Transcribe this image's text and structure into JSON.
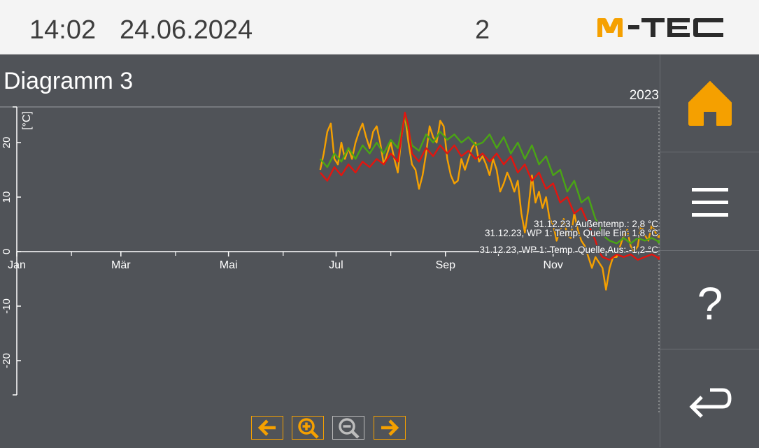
{
  "header": {
    "time": "14:02",
    "date": "24.06.2024",
    "page_number": "2",
    "logo_text": "M-TEC",
    "logo_colors": {
      "m": "#f5a000",
      "tec": "#2b2b2b"
    }
  },
  "page_title": "Diagramm 3",
  "sidebar": {
    "items": [
      {
        "name": "home",
        "icon": "home-icon",
        "color": "#f5a000"
      },
      {
        "name": "menu",
        "icon": "hamburger-menu-icon",
        "color": "#ffffff"
      },
      {
        "name": "help",
        "icon": "question-mark-icon",
        "color": "#ffffff",
        "label": "?"
      },
      {
        "name": "back",
        "icon": "return-arrow-icon",
        "color": "#ffffff"
      }
    ]
  },
  "bottom_nav": [
    {
      "name": "prev",
      "icon": "arrow-left-icon"
    },
    {
      "name": "zoom-in",
      "icon": "zoom-in-icon"
    },
    {
      "name": "zoom-out",
      "icon": "zoom-out-icon",
      "disabled": true
    },
    {
      "name": "next",
      "icon": "arrow-right-icon"
    }
  ],
  "chart_data": {
    "type": "line",
    "year_label": "2023",
    "ylabel": "[°C]",
    "ylim": [
      -26,
      26
    ],
    "xlim": [
      0,
      364
    ],
    "grid": false,
    "x_ticks": [
      {
        "day": 0,
        "label": "Jan"
      },
      {
        "day": 59,
        "label": "Mär"
      },
      {
        "day": 120,
        "label": "Mai"
      },
      {
        "day": 181,
        "label": "Jul"
      },
      {
        "day": 243,
        "label": "Sep"
      },
      {
        "day": 304,
        "label": "Nov"
      }
    ],
    "x_minor_ticks": [
      31,
      90,
      151,
      212,
      273,
      334
    ],
    "y_ticks": [
      20,
      10,
      0,
      -10,
      -20
    ],
    "series": [
      {
        "name": "Außentemp.",
        "color": "#f5a000",
        "tooltip": "31.12.23, Außentemp.: 2,8 °C",
        "points": [
          [
            172,
            15
          ],
          [
            174,
            18
          ],
          [
            176,
            22
          ],
          [
            178,
            23.5
          ],
          [
            180,
            17
          ],
          [
            182,
            16
          ],
          [
            184,
            20
          ],
          [
            186,
            17
          ],
          [
            188,
            19
          ],
          [
            190,
            17
          ],
          [
            192,
            20
          ],
          [
            194,
            22
          ],
          [
            196,
            23.5
          ],
          [
            198,
            21
          ],
          [
            200,
            19
          ],
          [
            202,
            22
          ],
          [
            204,
            23
          ],
          [
            206,
            20
          ],
          [
            208,
            16
          ],
          [
            210,
            18
          ],
          [
            212,
            20
          ],
          [
            214,
            17
          ],
          [
            216,
            14.5
          ],
          [
            218,
            21
          ],
          [
            220,
            25
          ],
          [
            222,
            20
          ],
          [
            224,
            16
          ],
          [
            226,
            15
          ],
          [
            228,
            11.5
          ],
          [
            230,
            14
          ],
          [
            232,
            18
          ],
          [
            234,
            23
          ],
          [
            236,
            21
          ],
          [
            238,
            20
          ],
          [
            240,
            24
          ],
          [
            242,
            23
          ],
          [
            244,
            17
          ],
          [
            246,
            14
          ],
          [
            248,
            12.5
          ],
          [
            250,
            13
          ],
          [
            252,
            17
          ],
          [
            254,
            15
          ],
          [
            256,
            17
          ],
          [
            258,
            19
          ],
          [
            260,
            20
          ],
          [
            262,
            16.5
          ],
          [
            264,
            17.5
          ],
          [
            266,
            16
          ],
          [
            268,
            14
          ],
          [
            270,
            17
          ],
          [
            272,
            15
          ],
          [
            274,
            11
          ],
          [
            276,
            12.5
          ],
          [
            278,
            14.5
          ],
          [
            280,
            13
          ],
          [
            282,
            11
          ],
          [
            284,
            13
          ],
          [
            286,
            7
          ],
          [
            288,
            3.5
          ],
          [
            290,
            8
          ],
          [
            292,
            14
          ],
          [
            294,
            9
          ],
          [
            296,
            11
          ],
          [
            298,
            8
          ],
          [
            300,
            10
          ],
          [
            302,
            6
          ],
          [
            304,
            5
          ],
          [
            306,
            2
          ],
          [
            308,
            4
          ],
          [
            310,
            6
          ],
          [
            312,
            3
          ],
          [
            314,
            2.5
          ],
          [
            316,
            7
          ],
          [
            318,
            4
          ],
          [
            320,
            2
          ],
          [
            322,
            1
          ],
          [
            324,
            -1
          ],
          [
            326,
            -3
          ],
          [
            328,
            -1
          ],
          [
            330,
            -2
          ],
          [
            332,
            -3
          ],
          [
            334,
            -7
          ],
          [
            336,
            -3
          ],
          [
            338,
            -1
          ],
          [
            340,
            -1
          ],
          [
            342,
            1
          ],
          [
            344,
            3
          ],
          [
            346,
            4
          ],
          [
            348,
            1
          ],
          [
            350,
            0
          ],
          [
            352,
            1
          ],
          [
            354,
            5
          ],
          [
            356,
            3
          ],
          [
            358,
            2
          ],
          [
            360,
            5
          ],
          [
            362,
            3.5
          ],
          [
            364,
            2.8
          ]
        ]
      },
      {
        "name": "WP 1: Temp. Quelle Ein",
        "color": "#4aa515",
        "tooltip": "31.12.23, WP 1: Temp. Quelle Ein: 1,8 °C",
        "points": [
          [
            172,
            17
          ],
          [
            176,
            15.5
          ],
          [
            180,
            18
          ],
          [
            184,
            16.5
          ],
          [
            188,
            19
          ],
          [
            192,
            17
          ],
          [
            196,
            19.5
          ],
          [
            200,
            18
          ],
          [
            204,
            20
          ],
          [
            208,
            18
          ],
          [
            212,
            20.5
          ],
          [
            216,
            19
          ],
          [
            220,
            25
          ],
          [
            224,
            19.5
          ],
          [
            228,
            18.5
          ],
          [
            232,
            21.5
          ],
          [
            236,
            20
          ],
          [
            240,
            22
          ],
          [
            244,
            20.5
          ],
          [
            248,
            21.5
          ],
          [
            252,
            20
          ],
          [
            256,
            21
          ],
          [
            260,
            19.5
          ],
          [
            264,
            20
          ],
          [
            268,
            21.5
          ],
          [
            272,
            19
          ],
          [
            276,
            21
          ],
          [
            280,
            18
          ],
          [
            284,
            20
          ],
          [
            288,
            17
          ],
          [
            292,
            19.5
          ],
          [
            296,
            16
          ],
          [
            300,
            17.5
          ],
          [
            304,
            14
          ],
          [
            308,
            15
          ],
          [
            312,
            11
          ],
          [
            316,
            13
          ],
          [
            320,
            9
          ],
          [
            324,
            10
          ],
          [
            328,
            6
          ],
          [
            330,
            5
          ],
          [
            332,
            3
          ],
          [
            336,
            2
          ],
          [
            340,
            1.5
          ],
          [
            344,
            2.5
          ],
          [
            348,
            1.5
          ],
          [
            352,
            2.5
          ],
          [
            356,
            2
          ],
          [
            360,
            2.5
          ],
          [
            364,
            1.8
          ]
        ]
      },
      {
        "name": "WP 1: Temp. Quelle Aus",
        "color": "#e3150f",
        "tooltip": "31.12.23, WP 1: Temp. Quelle Aus: -1,2 °C",
        "points": [
          [
            172,
            14.5
          ],
          [
            176,
            13
          ],
          [
            180,
            15.5
          ],
          [
            184,
            14
          ],
          [
            188,
            16
          ],
          [
            192,
            14.5
          ],
          [
            196,
            16.5
          ],
          [
            200,
            15.5
          ],
          [
            204,
            17
          ],
          [
            208,
            16
          ],
          [
            212,
            18
          ],
          [
            216,
            16.5
          ],
          [
            218,
            21
          ],
          [
            220,
            25.5
          ],
          [
            222,
            23
          ],
          [
            224,
            18
          ],
          [
            228,
            16.5
          ],
          [
            232,
            19
          ],
          [
            236,
            17.5
          ],
          [
            240,
            19.5
          ],
          [
            244,
            18
          ],
          [
            248,
            19.5
          ],
          [
            252,
            17.5
          ],
          [
            256,
            18.5
          ],
          [
            260,
            17
          ],
          [
            264,
            18
          ],
          [
            268,
            16.5
          ],
          [
            272,
            18
          ],
          [
            276,
            16
          ],
          [
            280,
            17.5
          ],
          [
            284,
            14.5
          ],
          [
            288,
            16
          ],
          [
            292,
            13
          ],
          [
            296,
            14.5
          ],
          [
            300,
            11.5
          ],
          [
            304,
            12.5
          ],
          [
            308,
            9
          ],
          [
            312,
            10
          ],
          [
            316,
            7
          ],
          [
            320,
            8
          ],
          [
            324,
            5
          ],
          [
            328,
            2
          ],
          [
            330,
            0
          ],
          [
            332,
            -1
          ],
          [
            336,
            -1.5
          ],
          [
            340,
            -0.5
          ],
          [
            344,
            -1
          ],
          [
            348,
            -0.5
          ],
          [
            352,
            -1.5
          ],
          [
            356,
            -1
          ],
          [
            360,
            -0.5
          ],
          [
            364,
            -1.2
          ]
        ]
      }
    ]
  }
}
